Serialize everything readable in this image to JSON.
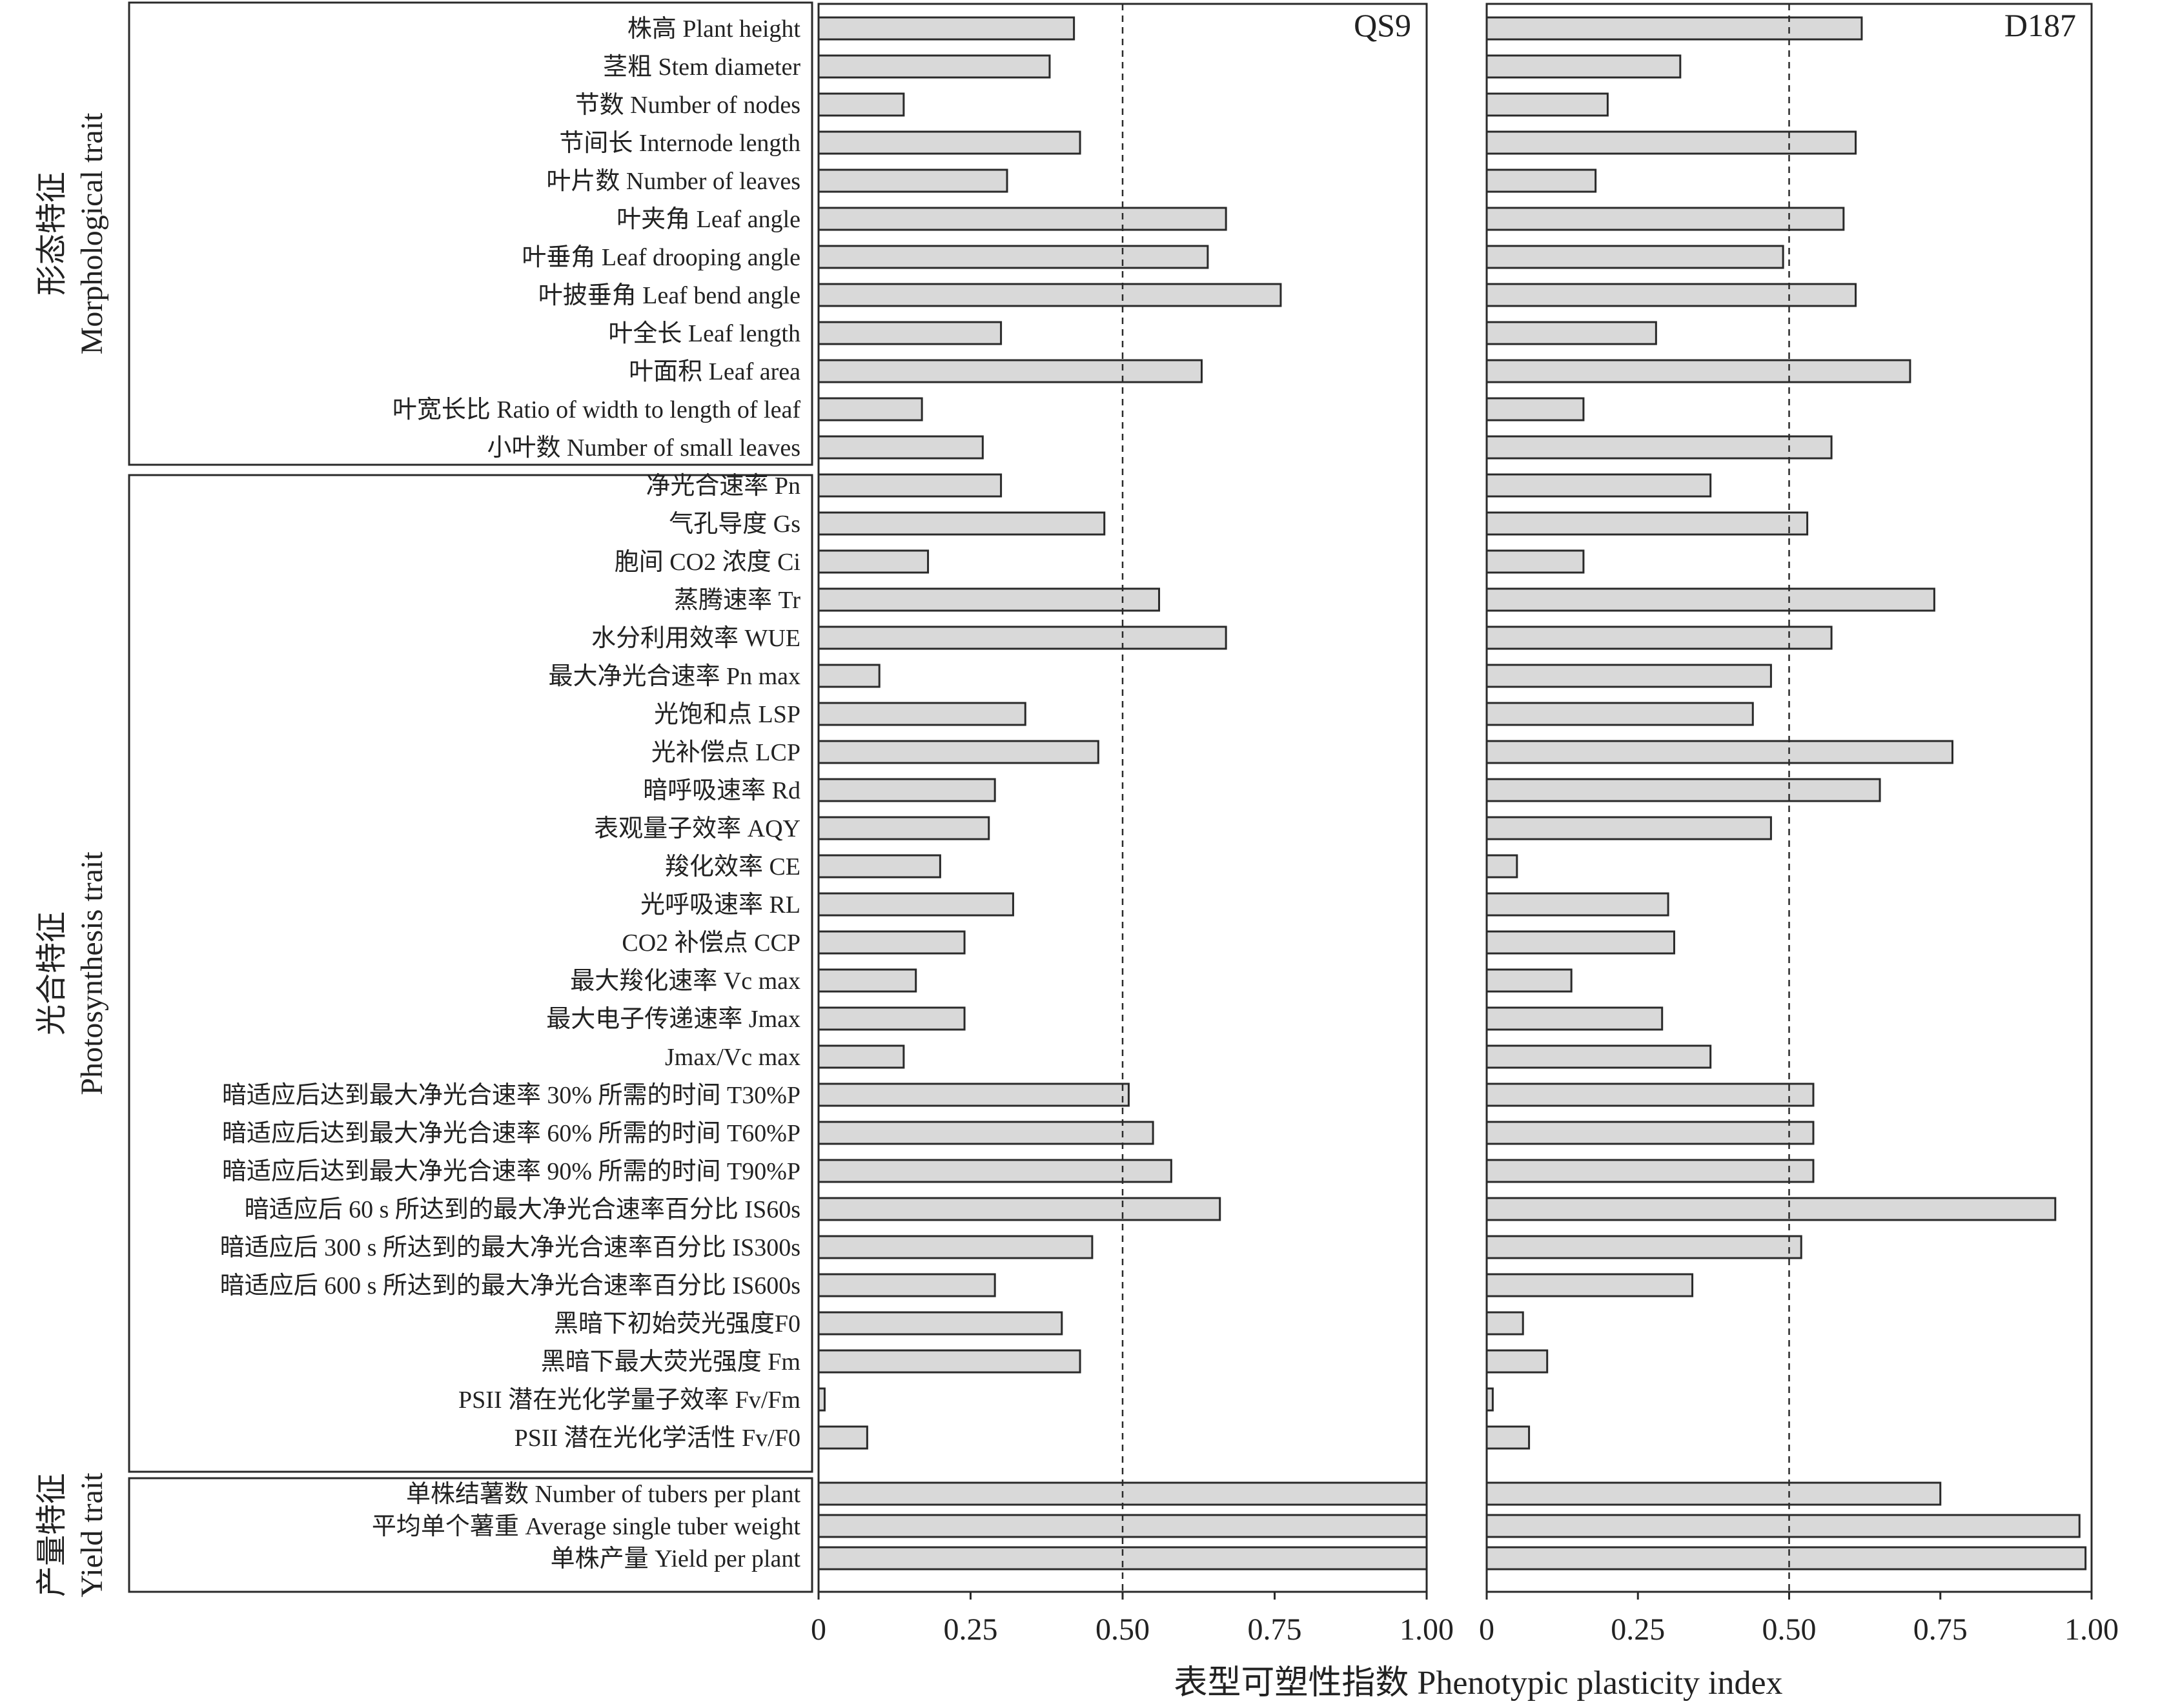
{
  "chart_data": {
    "type": "bar",
    "orientation": "horizontal",
    "xlabel": "表型可塑性指数 Phenotypic plasticity index",
    "xlim": [
      0,
      1.0
    ],
    "xticks": [
      "0",
      "0.25",
      "0.50",
      "0.75",
      "1.00"
    ],
    "reference_line": 0.5,
    "groups": [
      {
        "label_cn": "形态特征",
        "label_en": "Morphological trait",
        "count": 12
      },
      {
        "label_cn": "光合特征",
        "label_en": "Photosynthesis trait",
        "count": 26
      },
      {
        "label_cn": "产量特征",
        "label_en": "Yield trait",
        "count": 3
      }
    ],
    "categories": [
      "株高 Plant height",
      "茎粗 Stem diameter",
      "节数 Number of nodes",
      "节间长 Internode length",
      "叶片数 Number of leaves",
      "叶夹角 Leaf angle",
      "叶垂角 Leaf drooping angle",
      "叶披垂角 Leaf bend angle",
      "叶全长 Leaf length",
      "叶面积 Leaf area",
      "叶宽长比 Ratio of width to length of leaf",
      "小叶数  Number of small leaves",
      "净光合速率 Pn",
      "气孔导度 Gs",
      "胞间 CO2 浓度 Ci",
      "蒸腾速率 Tr",
      "水分利用效率 WUE",
      "最大净光合速率 Pn max",
      "光饱和点 LSP",
      "光补偿点 LCP",
      "暗呼吸速率 Rd",
      "表观量子效率 AQY",
      "羧化效率 CE",
      "光呼吸速率 RL",
      "CO2 补偿点 CCP",
      "最大羧化速率 Vc max",
      "最大电子传递速率 Jmax",
      "Jmax/Vc max",
      "暗适应后达到最大净光合速率 30% 所需的时间 T30%P",
      "暗适应后达到最大净光合速率 60% 所需的时间 T60%P",
      "暗适应后达到最大净光合速率 90% 所需的时间 T90%P",
      "暗适应后 60 s 所达到的最大净光合速率百分比 IS60s",
      "暗适应后 300 s 所达到的最大净光合速率百分比 IS300s",
      "暗适应后 600 s 所达到的最大净光合速率百分比 IS600s",
      "黑暗下初始荧光强度F0",
      "黑暗下最大荧光强度 Fm",
      "PSII 潜在光化学量子效率 Fv/Fm",
      "PSII 潜在光化学活性 Fv/F0",
      "单株结薯数 Number of tubers per plant",
      "平均单个薯重 Average single tuber weight",
      "单株产量 Yield per plant"
    ],
    "series": [
      {
        "name": "QS9",
        "values": [
          0.42,
          0.38,
          0.14,
          0.43,
          0.31,
          0.67,
          0.64,
          0.76,
          0.3,
          0.63,
          0.17,
          0.27,
          0.3,
          0.47,
          0.18,
          0.56,
          0.67,
          0.1,
          0.34,
          0.46,
          0.29,
          0.28,
          0.2,
          0.32,
          0.24,
          0.16,
          0.24,
          0.14,
          0.51,
          0.55,
          0.58,
          0.66,
          0.45,
          0.29,
          0.4,
          0.43,
          0.01,
          0.08,
          1.0,
          1.0,
          1.0
        ]
      },
      {
        "name": "D187",
        "values": [
          0.62,
          0.32,
          0.2,
          0.61,
          0.18,
          0.59,
          0.49,
          0.61,
          0.28,
          0.7,
          0.16,
          0.57,
          0.37,
          0.53,
          0.16,
          0.74,
          0.57,
          0.47,
          0.44,
          0.77,
          0.65,
          0.47,
          0.05,
          0.3,
          0.31,
          0.14,
          0.29,
          0.37,
          0.54,
          0.54,
          0.54,
          0.94,
          0.52,
          0.34,
          0.06,
          0.1,
          0.01,
          0.07,
          0.75,
          0.98,
          0.99
        ]
      }
    ]
  }
}
